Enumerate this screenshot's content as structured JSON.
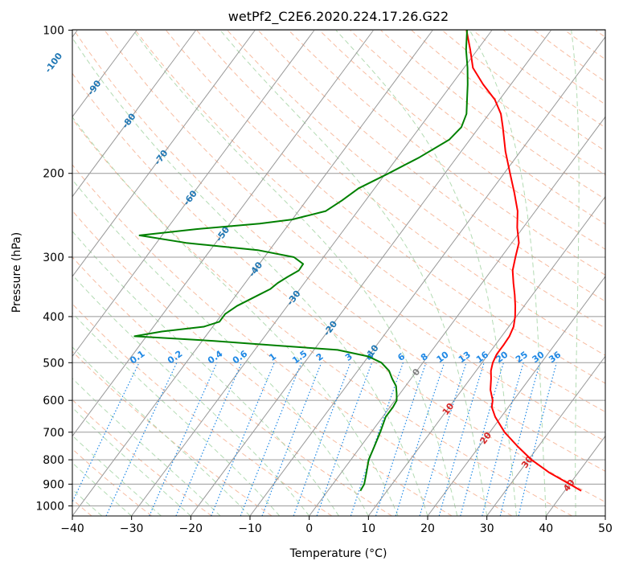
{
  "chart_data": {
    "type": "skew-t",
    "title": "wetPf2_C2E6.2020.224.17.26.G22",
    "xlabel": "Temperature (°C)",
    "ylabel": "Pressure (hPa)",
    "xlim": [
      -40,
      50
    ],
    "ylim": [
      1050,
      100
    ],
    "x_ticks": [
      -40,
      -30,
      -20,
      -10,
      0,
      10,
      20,
      30,
      40,
      50
    ],
    "p_ticks": [
      100,
      200,
      300,
      400,
      500,
      600,
      700,
      800,
      900,
      1000
    ],
    "grid": true,
    "colors": {
      "temperature": "#ff0000",
      "dewpoint": "#008000",
      "isotherm": "#999999",
      "dry_adiabat": "#f4a582",
      "moist_adiabat": "#a6d5a6",
      "mixing_ratio": "#1e88e5",
      "isotherm_label_cold": "#1f77b4",
      "isotherm_label_warm": "#d62728",
      "isotherm_label_zero": "#808080",
      "mixing_ratio_label": "#1e88e5"
    },
    "isotherm_labels": [
      -100,
      -90,
      -80,
      -70,
      -60,
      -50,
      -40,
      -30,
      -20,
      -10,
      0,
      10,
      20,
      30,
      40
    ],
    "mixing_ratio_labels": [
      0.1,
      0.2,
      0.4,
      0.6,
      1,
      1.5,
      2,
      3,
      4,
      6,
      8,
      10,
      13,
      16,
      20,
      25,
      30,
      36
    ],
    "series": [
      {
        "name": "temperature",
        "points": [
          [
            930,
            42.8
          ],
          [
            900,
            40
          ],
          [
            850,
            35
          ],
          [
            800,
            30.5
          ],
          [
            750,
            26.5
          ],
          [
            700,
            22.5
          ],
          [
            650,
            19
          ],
          [
            620,
            17.2
          ],
          [
            600,
            16.5
          ],
          [
            570,
            14.8
          ],
          [
            540,
            13.5
          ],
          [
            520,
            12.5
          ],
          [
            500,
            11.8
          ],
          [
            480,
            11.4
          ],
          [
            460,
            11.4
          ],
          [
            440,
            11.3
          ],
          [
            420,
            10.8
          ],
          [
            400,
            9.8
          ],
          [
            380,
            8.5
          ],
          [
            360,
            7
          ],
          [
            340,
            5.3
          ],
          [
            320,
            3.6
          ],
          [
            300,
            2.4
          ],
          [
            280,
            1.2
          ],
          [
            260,
            -1
          ],
          [
            240,
            -3
          ],
          [
            220,
            -5.8
          ],
          [
            200,
            -9
          ],
          [
            180,
            -12.5
          ],
          [
            160,
            -16
          ],
          [
            150,
            -18
          ],
          [
            140,
            -20.8
          ],
          [
            130,
            -24.7
          ],
          [
            120,
            -28.5
          ],
          [
            110,
            -31.2
          ],
          [
            100,
            -34.3
          ]
        ]
      },
      {
        "name": "dewpoint",
        "points": [
          [
            930,
            5.5
          ],
          [
            900,
            5.3
          ],
          [
            850,
            4.2
          ],
          [
            800,
            3
          ],
          [
            750,
            2.3
          ],
          [
            700,
            1.5
          ],
          [
            650,
            0.5
          ],
          [
            620,
            0.5
          ],
          [
            600,
            0.3
          ],
          [
            580,
            -0.6
          ],
          [
            560,
            -1.6
          ],
          [
            540,
            -3.2
          ],
          [
            520,
            -4.7
          ],
          [
            500,
            -7
          ],
          [
            485,
            -10
          ],
          [
            470,
            -16
          ],
          [
            460,
            -27
          ],
          [
            450,
            -38
          ],
          [
            440,
            -52
          ],
          [
            430,
            -48
          ],
          [
            420,
            -41.5
          ],
          [
            410,
            -39.5
          ],
          [
            395,
            -39.5
          ],
          [
            380,
            -38.5
          ],
          [
            360,
            -36.2
          ],
          [
            350,
            -35
          ],
          [
            340,
            -34.5
          ],
          [
            330,
            -33.6
          ],
          [
            320,
            -32.5
          ],
          [
            310,
            -32.6
          ],
          [
            300,
            -35
          ],
          [
            290,
            -42
          ],
          [
            280,
            -55
          ],
          [
            270,
            -63.8
          ],
          [
            262,
            -55
          ],
          [
            255,
            -45
          ],
          [
            250,
            -40
          ],
          [
            240,
            -35.4
          ],
          [
            228,
            -34
          ],
          [
            215,
            -32.7
          ],
          [
            200,
            -29.5
          ],
          [
            185,
            -26.3
          ],
          [
            170,
            -23.5
          ],
          [
            160,
            -23
          ],
          [
            150,
            -23.8
          ],
          [
            140,
            -25.5
          ],
          [
            130,
            -27.3
          ],
          [
            120,
            -29.4
          ],
          [
            110,
            -31.9
          ],
          [
            100,
            -34.2
          ]
        ]
      }
    ]
  }
}
